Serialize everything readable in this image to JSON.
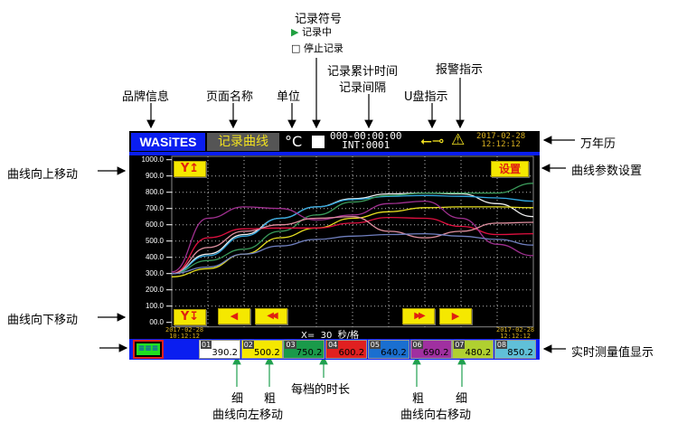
{
  "annotations": {
    "record_symbol": "记录符号",
    "recording": "记录中",
    "stopped": "停止记录",
    "brand_info": "品牌信息",
    "page_name": "页面名称",
    "unit": "单位",
    "record_elapsed": "记录累计时间",
    "record_interval": "记录间隔",
    "usb_indicator": "U盘指示",
    "alarm_indicator": "报警指示",
    "calendar": "万年历",
    "curve_settings": "曲线参数设置",
    "curve_up": "曲线向上移动",
    "curve_down": "曲线向下移动",
    "realtime_values": "实时测量值显示",
    "fine_left": "细",
    "coarse_left": "粗",
    "curve_left": "曲线向左移动",
    "time_per_div": "每档的时长",
    "coarse_right": "粗",
    "fine_right": "细",
    "curve_right": "曲线向右移动"
  },
  "screen": {
    "brand": "WASiTES",
    "page_title": "记录曲线",
    "unit": "°C",
    "elapsed": "000-00:00:00",
    "interval": "INT:0001",
    "usb_icon": "usb-icon",
    "alarm_icon": "warning-icon",
    "clock_date": "2017-02-28",
    "clock_time": "12:12:12",
    "settings_label": "设置",
    "y_up_label": "Y↥",
    "y_down_label": "Y↧",
    "fine_left_label": "◀",
    "coarse_left_label": "◀◀",
    "coarse_right_label": "▶▶",
    "fine_right_label": "▶",
    "x_scale": "X=  30  秒/格",
    "start_date": "2017-02-28",
    "start_time": "10:12:12",
    "end_date": "2017-02-28",
    "end_time": "12:12:12",
    "menu_label": "≡≡≡",
    "y_ticks": [
      "1000.0",
      "900.0",
      "800.0",
      "700.0",
      "600.0",
      "500.0",
      "400.0",
      "300.0",
      "200.0",
      "100.0",
      "00.0"
    ],
    "channels": [
      {
        "id": "01",
        "value": "390.2",
        "color": "#ffffff"
      },
      {
        "id": "02",
        "value": "500.2",
        "color": "#f5e800"
      },
      {
        "id": "03",
        "value": "750.2",
        "color": "#1a9a4a"
      },
      {
        "id": "04",
        "value": "600.2",
        "color": "#e02020"
      },
      {
        "id": "05",
        "value": "640.2",
        "color": "#1a6fd0"
      },
      {
        "id": "06",
        "value": "690.2",
        "color": "#a030a0"
      },
      {
        "id": "07",
        "value": "480.2",
        "color": "#b0d030"
      },
      {
        "id": "08",
        "value": "850.2",
        "color": "#60c0d8"
      }
    ]
  },
  "chart_data": {
    "type": "line",
    "ylim": [
      0,
      1000
    ],
    "grid": true,
    "series": [
      {
        "color": "#f0f0f0",
        "values": [
          300,
          420,
          540,
          640,
          710,
          760,
          790,
          795,
          790,
          730,
          650
        ]
      },
      {
        "color": "#30a8e0",
        "values": [
          300,
          410,
          530,
          640,
          710,
          755,
          775,
          780,
          775,
          765,
          745
        ]
      },
      {
        "color": "#3a9a5a",
        "values": [
          300,
          380,
          450,
          560,
          660,
          740,
          780,
          795,
          795,
          795,
          855
        ]
      },
      {
        "color": "#e8e020",
        "values": [
          280,
          330,
          420,
          520,
          580,
          640,
          680,
          705,
          710,
          710,
          705
        ]
      },
      {
        "color": "#e01040",
        "values": [
          300,
          520,
          575,
          580,
          580,
          610,
          645,
          640,
          590,
          540,
          545
        ]
      },
      {
        "color": "#a03090",
        "values": [
          310,
          640,
          710,
          700,
          630,
          660,
          730,
          745,
          640,
          480,
          410
        ]
      },
      {
        "color": "#e090a0",
        "values": [
          300,
          460,
          560,
          600,
          640,
          650,
          560,
          520,
          560,
          610,
          615
        ]
      },
      {
        "color": "#7080c0",
        "values": [
          300,
          340,
          420,
          470,
          510,
          530,
          540,
          545,
          530,
          510,
          475
        ]
      }
    ]
  }
}
